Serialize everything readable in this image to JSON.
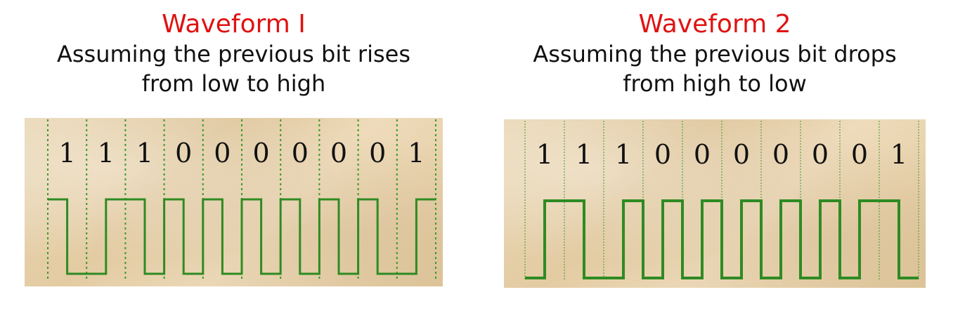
{
  "colors": {
    "title": "#e01212",
    "waveform": "#2e8b22",
    "grid": "#3a9a2a",
    "text": "#111111"
  },
  "waveforms": [
    {
      "title": "Waveform I",
      "subtitle": "Assuming the previous bit rises\nfrom low to high",
      "bits": [
        "1",
        "1",
        "1",
        "0",
        "0",
        "0",
        "0",
        "0",
        "0",
        "1"
      ],
      "grid_style": "dotted",
      "starting_level": "high"
    },
    {
      "title": "Waveform 2",
      "subtitle": "Assuming the previous bit drops\nfrom high to low",
      "bits": [
        "1",
        "1",
        "1",
        "0",
        "0",
        "0",
        "0",
        "0",
        "0",
        "1"
      ],
      "grid_style": "thin",
      "starting_level": "low"
    }
  ]
}
